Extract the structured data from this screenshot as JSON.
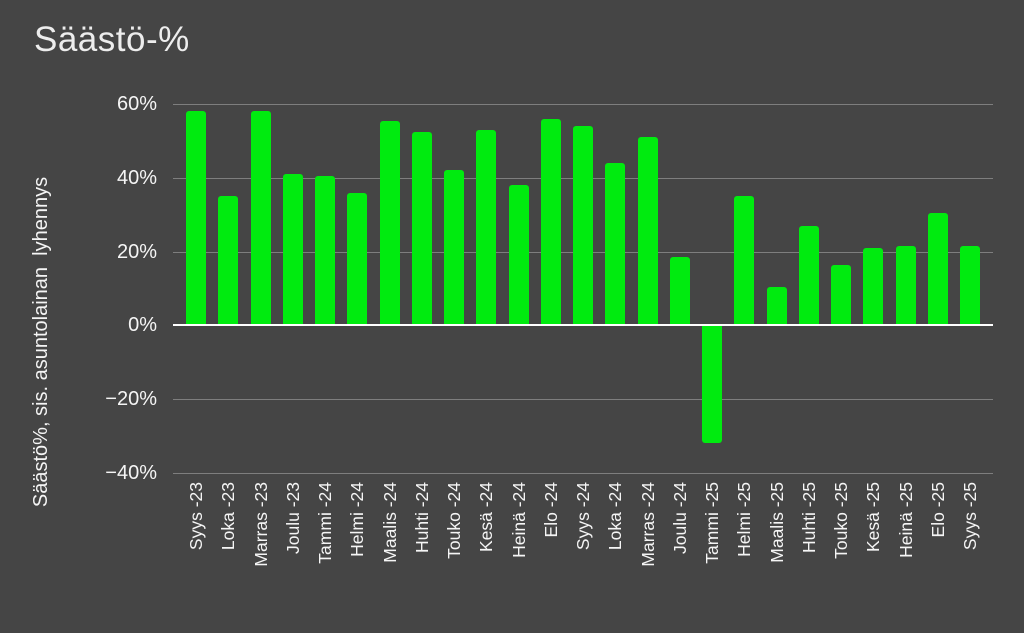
{
  "chart_data": {
    "type": "bar",
    "title": "Säästö-%",
    "ylabel": "Säästö%, sis. asuntolainan  lyhennys",
    "xlabel": "",
    "categories": [
      "Syys -23",
      "Loka -23",
      "Marras -23",
      "Joulu -23",
      "Tammi -24",
      "Helmi -24",
      "Maalis -24",
      "Huhti -24",
      "Touko -24",
      "Kesä -24",
      "Heinä -24",
      "Elo -24",
      "Syys -24",
      "Loka -24",
      "Marras -24",
      "Joulu -24",
      "Tammi -25",
      "Helmi -25",
      "Maalis -25",
      "Huhti -25",
      "Touko -25",
      "Kesä -25",
      "Heinä -25",
      "Elo -25",
      "Syys -25"
    ],
    "values": [
      58,
      35,
      58,
      41,
      40.5,
      36,
      55.5,
      52.5,
      42,
      53,
      38,
      56,
      54,
      44,
      51,
      18.5,
      -32,
      35,
      10.5,
      27,
      16.5,
      21,
      21.5,
      30.5,
      21.5
    ],
    "ylim": [
      -40,
      60
    ],
    "yticks": [
      60,
      40,
      20,
      0,
      -20,
      -40
    ],
    "ytick_labels": [
      "60%",
      "40%",
      "20%",
      "0%",
      "−20%",
      "−40%"
    ],
    "grid": true,
    "legend": false,
    "colors": {
      "background": "#454545",
      "bar": "#00EB0F",
      "title_text": "#EDEDED",
      "axis_text": "#F5F5F5",
      "gridline": "#8C8C8C",
      "zero_line": "#FFFFFF"
    }
  }
}
